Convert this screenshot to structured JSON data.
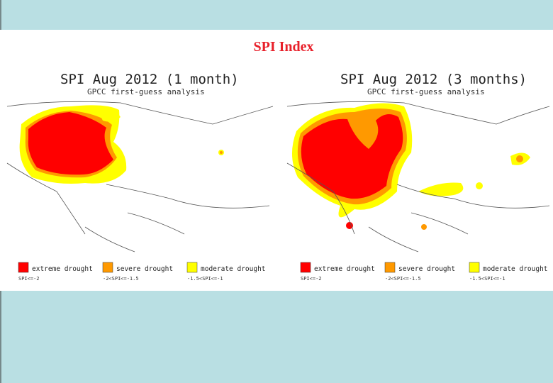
{
  "title": "SPI Index",
  "maps": [
    {
      "title": "SPI Aug 2012 (1 month)",
      "subtitle": "GPCC first-guess analysis",
      "legend": [
        {
          "label": "extreme drought",
          "range": "SPI<=-2",
          "color": "#ff0000"
        },
        {
          "label": "severe drought",
          "range": "-2<SPI<=-1.5",
          "color": "#ff9900"
        },
        {
          "label": "moderate drought",
          "range": "-1.5<SPI<=-1",
          "color": "#ffff00"
        }
      ]
    },
    {
      "title": "SPI Aug 2012 (3 months)",
      "subtitle": "GPCC first-guess analysis",
      "legend": [
        {
          "label": "extreme drought",
          "range": "SPI<=-2",
          "color": "#ff0000"
        },
        {
          "label": "severe drought",
          "range": "-2<SPI<=-1.5",
          "color": "#ff9900"
        },
        {
          "label": "moderate drought",
          "range": "-1.5<SPI<=-1",
          "color": "#ffff00"
        }
      ]
    }
  ]
}
